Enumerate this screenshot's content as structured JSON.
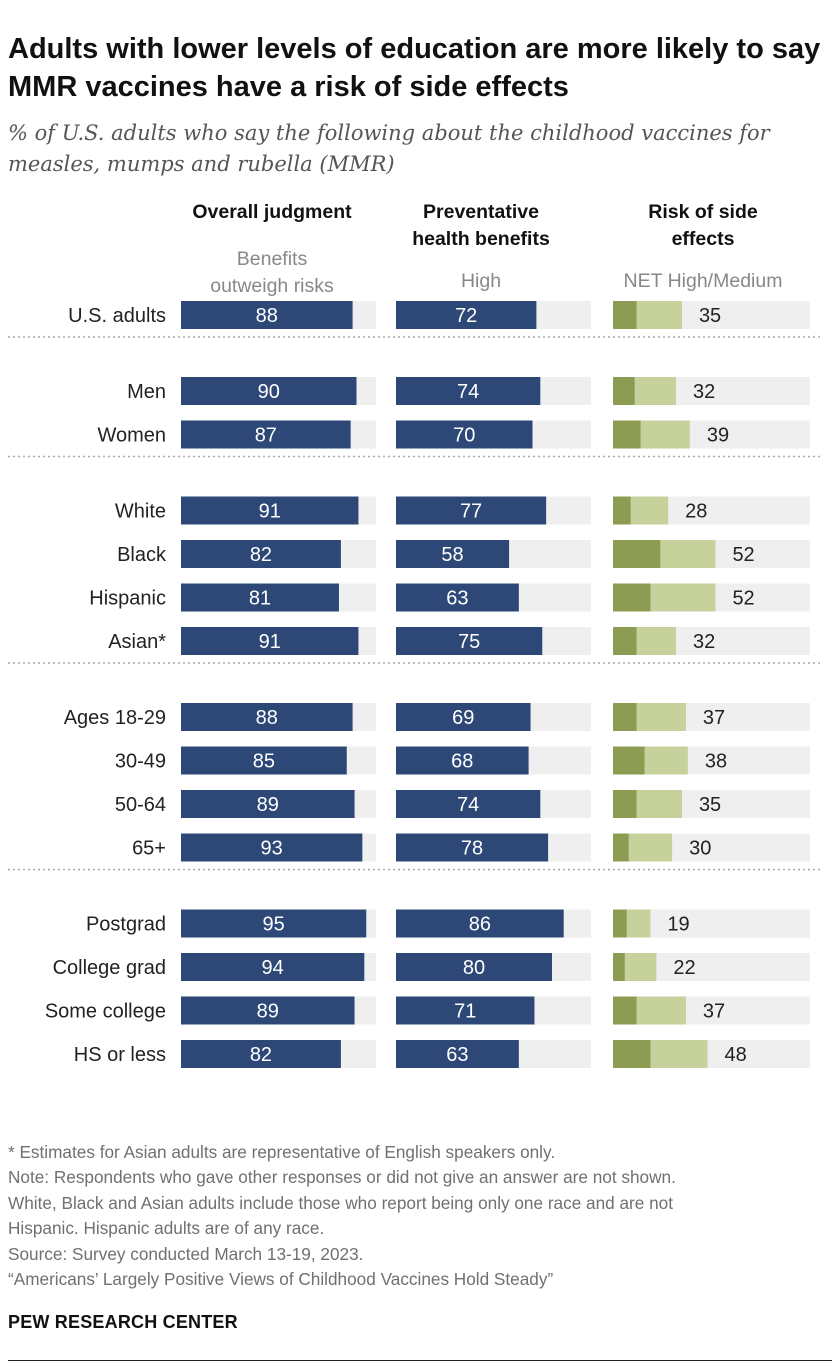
{
  "title": "Adults with lower levels of education are more likely to say MMR vaccines have a risk of side effects",
  "subtitle": "% of U.S. adults who say the following about the childhood vaccines for measles, mumps and rubella (MMR)",
  "colors": {
    "navy": "#2d4877",
    "track": "#efefef",
    "olive_dark": "#8c9c52",
    "olive_light": "#c6d19b"
  },
  "chart_data": {
    "type": "bar",
    "columns": [
      {
        "key": "overall",
        "header": [
          "Overall judgment"
        ],
        "subheader": [
          "Benefits",
          "outweigh risks"
        ]
      },
      {
        "key": "preventative",
        "header": [
          "Preventative",
          "health benefits"
        ],
        "subheader": [
          "High"
        ]
      },
      {
        "key": "risk",
        "header": [
          "Risk of side",
          "effects"
        ],
        "subheader": [
          "NET High/Medium"
        ]
      }
    ],
    "groups": [
      [
        {
          "label": "U.S. adults",
          "overall": 88,
          "preventative": 72,
          "risk": 35,
          "risk_high": 12
        }
      ],
      [
        {
          "label": "Men",
          "overall": 90,
          "preventative": 74,
          "risk": 32,
          "risk_high": 11
        },
        {
          "label": "Women",
          "overall": 87,
          "preventative": 70,
          "risk": 39,
          "risk_high": 14
        }
      ],
      [
        {
          "label": "White",
          "overall": 91,
          "preventative": 77,
          "risk": 28,
          "risk_high": 9
        },
        {
          "label": "Black",
          "overall": 82,
          "preventative": 58,
          "risk": 52,
          "risk_high": 24
        },
        {
          "label": "Hispanic",
          "overall": 81,
          "preventative": 63,
          "risk": 52,
          "risk_high": 19
        },
        {
          "label": "Asian*",
          "overall": 91,
          "preventative": 75,
          "risk": 32,
          "risk_high": 12
        }
      ],
      [
        {
          "label": "Ages 18-29",
          "overall": 88,
          "preventative": 69,
          "risk": 37,
          "risk_high": 12
        },
        {
          "label": "30-49",
          "overall": 85,
          "preventative": 68,
          "risk": 38,
          "risk_high": 16
        },
        {
          "label": "50-64",
          "overall": 89,
          "preventative": 74,
          "risk": 35,
          "risk_high": 12
        },
        {
          "label": "65+",
          "overall": 93,
          "preventative": 78,
          "risk": 30,
          "risk_high": 8
        }
      ],
      [
        {
          "label": "Postgrad",
          "overall": 95,
          "preventative": 86,
          "risk": 19,
          "risk_high": 7
        },
        {
          "label": "College grad",
          "overall": 94,
          "preventative": 80,
          "risk": 22,
          "risk_high": 6
        },
        {
          "label": "Some college",
          "overall": 89,
          "preventative": 71,
          "risk": 37,
          "risk_high": 12
        },
        {
          "label": "HS or less",
          "overall": 82,
          "preventative": 63,
          "risk": 48,
          "risk_high": 19
        }
      ]
    ],
    "xlim": [
      0,
      100
    ]
  },
  "notes": [
    "* Estimates for Asian adults are representative of English speakers only.",
    "Note: Respondents who gave other responses or did not give an answer are not shown.",
    "White, Black and Asian adults include those who report being only one race and are not",
    "Hispanic. Hispanic adults are of any race.",
    "Source: Survey conducted March 13-19, 2023.",
    "“Americans’ Largely Positive Views of Childhood Vaccines Hold Steady”"
  ],
  "footer": "PEW RESEARCH CENTER"
}
